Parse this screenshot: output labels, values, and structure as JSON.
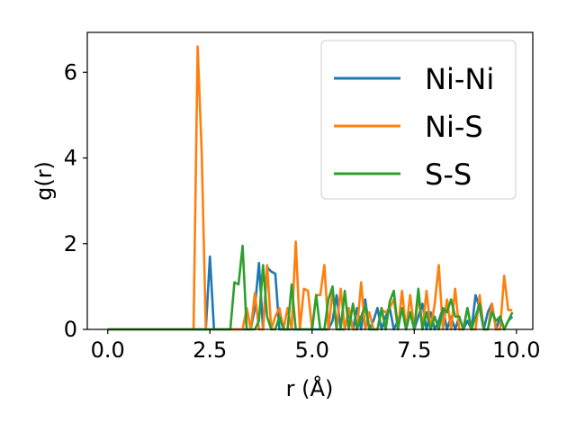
{
  "chart_data": {
    "type": "line",
    "xlabel": "r (Å)",
    "ylabel": "g(r)",
    "xlim": [
      -0.5,
      10.4
    ],
    "ylim": [
      0,
      6.93
    ],
    "xticks": [
      0.0,
      2.5,
      5.0,
      7.5,
      10.0
    ],
    "xtick_labels": [
      "0.0",
      "2.5",
      "5.0",
      "7.5",
      "10.0"
    ],
    "yticks": [
      0,
      2,
      4,
      6
    ],
    "ytick_labels": [
      "0",
      "2",
      "4",
      "6"
    ],
    "grid": false,
    "legend_position": "upper-right",
    "colors": {
      "Ni-Ni": "#1f77b4",
      "Ni-S": "#ff7f0e",
      "S-S": "#2ca02c"
    },
    "series": [
      {
        "name": "Ni-Ni",
        "x": [
          0.0,
          2.4,
          2.5,
          2.6,
          2.7,
          3.5,
          3.6,
          3.7,
          3.8,
          3.9,
          4.0,
          4.1,
          4.2,
          4.3,
          5.4,
          5.5,
          5.6,
          5.7,
          5.8,
          5.9,
          6.0,
          6.1,
          6.2,
          6.3,
          6.4,
          6.5,
          6.6,
          6.7,
          6.8,
          6.9,
          7.0,
          7.1,
          7.2,
          7.3,
          7.4,
          7.5,
          7.6,
          7.7,
          7.8,
          7.9,
          8.0,
          8.1,
          8.2,
          8.3,
          8.4,
          8.5,
          8.6,
          8.7,
          8.8,
          8.9,
          9.0,
          9.1,
          9.2,
          9.3,
          9.4,
          9.5,
          9.6,
          9.7,
          9.8,
          9.9
        ],
        "y": [
          0.0,
          0.0,
          1.7,
          0.0,
          0.0,
          0.0,
          0.5,
          1.55,
          0.0,
          1.45,
          1.35,
          1.3,
          0.0,
          0.0,
          0.0,
          0.2,
          0.8,
          0.0,
          0.0,
          0.4,
          0.0,
          0.5,
          0.0,
          0.7,
          0.0,
          0.2,
          0.5,
          0.0,
          0.3,
          0.5,
          0.0,
          0.2,
          0.5,
          0.0,
          0.4,
          0.0,
          0.3,
          0.6,
          0.0,
          0.4,
          0.0,
          0.2,
          0.5,
          0.0,
          0.3,
          0.0,
          0.3,
          0.0,
          0.2,
          0.0,
          0.8,
          0.5,
          0.0,
          0.4,
          0.6,
          0.0,
          0.3,
          0.0,
          0.2,
          0.3
        ]
      },
      {
        "name": "Ni-S",
        "x": [
          0.0,
          2.1,
          2.2,
          2.3,
          2.4,
          3.3,
          3.4,
          3.5,
          3.6,
          3.7,
          3.8,
          3.9,
          4.0,
          4.1,
          4.2,
          4.3,
          4.4,
          4.5,
          4.6,
          4.7,
          4.8,
          4.9,
          5.0,
          5.1,
          5.2,
          5.3,
          5.4,
          5.5,
          5.6,
          5.7,
          5.8,
          5.9,
          6.0,
          6.1,
          6.2,
          6.3,
          6.4,
          6.5,
          6.6,
          6.7,
          6.8,
          6.9,
          7.0,
          7.1,
          7.2,
          7.3,
          7.4,
          7.5,
          7.6,
          7.7,
          7.8,
          7.9,
          8.0,
          8.1,
          8.2,
          8.3,
          8.4,
          8.5,
          8.6,
          8.7,
          8.8,
          8.9,
          9.0,
          9.1,
          9.2,
          9.3,
          9.4,
          9.5,
          9.6,
          9.7,
          9.8,
          9.9
        ],
        "y": [
          0.0,
          0.0,
          6.6,
          4.1,
          0.0,
          0.0,
          0.5,
          0.0,
          0.85,
          0.0,
          0.0,
          1.5,
          0.0,
          0.3,
          0.5,
          0.0,
          0.5,
          0.0,
          2.05,
          0.0,
          0.95,
          0.9,
          0.0,
          0.8,
          0.8,
          1.5,
          0.0,
          0.9,
          0.0,
          0.95,
          0.0,
          0.5,
          0.0,
          0.0,
          1.1,
          0.0,
          0.4,
          0.0,
          0.0,
          0.45,
          0.4,
          0.5,
          0.7,
          0.0,
          0.9,
          0.0,
          0.8,
          0.0,
          0.8,
          0.0,
          0.9,
          0.0,
          0.6,
          1.5,
          0.0,
          0.7,
          0.0,
          0.95,
          0.0,
          0.0,
          0.5,
          0.0,
          0.0,
          0.8,
          0.0,
          0.0,
          0.6,
          0.0,
          0.0,
          1.25,
          0.45,
          0.45
        ]
      },
      {
        "name": "S-S",
        "x": [
          0.0,
          2.9,
          3.0,
          3.1,
          3.2,
          3.3,
          3.4,
          3.5,
          3.6,
          3.7,
          3.8,
          3.9,
          4.0,
          4.1,
          4.2,
          4.3,
          4.4,
          4.5,
          4.6,
          4.7,
          4.8,
          4.9,
          5.0,
          5.1,
          5.2,
          5.3,
          5.4,
          5.5,
          5.6,
          5.7,
          5.8,
          5.9,
          6.0,
          6.1,
          6.2,
          6.3,
          6.4,
          6.5,
          6.6,
          6.7,
          6.8,
          6.9,
          7.0,
          7.1,
          7.2,
          7.3,
          7.4,
          7.5,
          7.6,
          7.7,
          7.8,
          7.9,
          8.0,
          8.1,
          8.2,
          8.3,
          8.4,
          8.5,
          8.6,
          8.7,
          8.8,
          8.9,
          9.0,
          9.1,
          9.2,
          9.3,
          9.4,
          9.5,
          9.6,
          9.7,
          9.8,
          9.9
        ],
        "y": [
          0.0,
          0.0,
          0.0,
          1.1,
          1.05,
          1.95,
          0.0,
          0.0,
          0.0,
          0.2,
          1.5,
          0.3,
          0.0,
          0.0,
          0.3,
          0.0,
          0.0,
          1.05,
          0.0,
          0.0,
          0.0,
          0.0,
          0.0,
          0.8,
          0.0,
          0.0,
          0.7,
          1.0,
          0.0,
          0.0,
          0.9,
          0.0,
          0.6,
          0.0,
          0.3,
          0.55,
          0.0,
          0.0,
          0.0,
          0.5,
          0.0,
          0.65,
          0.9,
          0.0,
          0.5,
          0.0,
          0.4,
          0.0,
          0.95,
          0.0,
          0.4,
          0.0,
          0.3,
          0.0,
          0.5,
          0.4,
          0.7,
          0.3,
          0.3,
          0.0,
          0.5,
          0.0,
          0.3,
          0.6,
          0.0,
          0.0,
          0.4,
          0.2,
          0.3,
          0.0,
          0.2,
          0.4
        ]
      }
    ]
  }
}
